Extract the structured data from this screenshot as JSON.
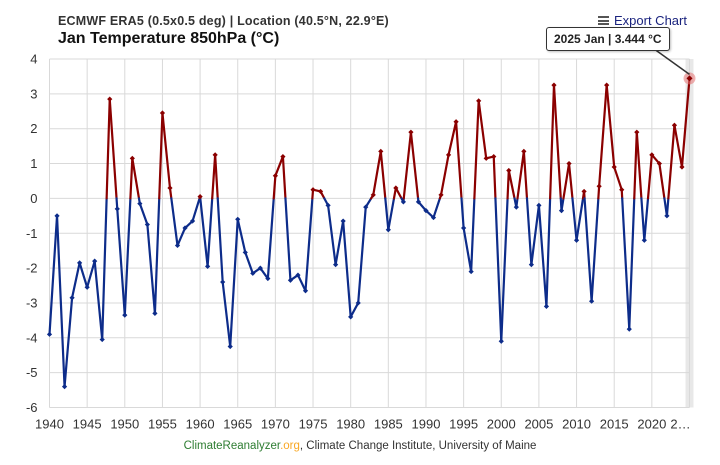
{
  "header": {
    "subtitle": "ECMWF ERA5 (0.5x0.5 deg) | Location (40.5°N, 22.9°E)",
    "export_label": "Export Chart",
    "menu_icon": "hamburger-menu-icon"
  },
  "footer": {
    "credit_site_a": "ClimateReanalyzer",
    "credit_site_b": ".org",
    "credit_rest": ", Climate Change Institute, University of Maine"
  },
  "tooltip": {
    "text": "2025 Jan | 3.444 °C"
  },
  "colors": {
    "below_zero": "#0d2c8a",
    "above_zero": "#8b0000",
    "grid": "#d9d9d9",
    "axis_text": "#333333",
    "highlight": "#e57373"
  },
  "chart_data": {
    "type": "line",
    "title": "Jan Temperature 850hPa (°C)",
    "xlabel": "",
    "ylabel": "",
    "xlim": [
      1940,
      2025
    ],
    "ylim": [
      -6,
      4
    ],
    "x_ticks": [
      1940,
      1945,
      1950,
      1955,
      1960,
      1965,
      1970,
      1975,
      1980,
      1985,
      1990,
      1995,
      2000,
      2005,
      2010,
      2015,
      2020
    ],
    "x_tick_labels": [
      "1940",
      "1945",
      "1950",
      "1955",
      "1960",
      "1965",
      "1970",
      "1975",
      "1980",
      "1985",
      "1990",
      "1995",
      "2000",
      "2005",
      "2010",
      "2015",
      "2020",
      "2…"
    ],
    "y_ticks": [
      -6,
      -5,
      -4,
      -3,
      -2,
      -1,
      0,
      1,
      2,
      3,
      4
    ],
    "grid": true,
    "threshold": 0,
    "highlighted_point": {
      "x": 2025,
      "y": 3.444
    },
    "x": [
      1940,
      1941,
      1942,
      1943,
      1944,
      1945,
      1946,
      1947,
      1948,
      1949,
      1950,
      1951,
      1952,
      1953,
      1954,
      1955,
      1956,
      1957,
      1958,
      1959,
      1960,
      1961,
      1962,
      1963,
      1964,
      1965,
      1966,
      1967,
      1968,
      1969,
      1970,
      1971,
      1972,
      1973,
      1974,
      1975,
      1976,
      1977,
      1978,
      1979,
      1980,
      1981,
      1982,
      1983,
      1984,
      1985,
      1986,
      1987,
      1988,
      1989,
      1990,
      1991,
      1992,
      1993,
      1994,
      1995,
      1996,
      1997,
      1998,
      1999,
      2000,
      2001,
      2002,
      2003,
      2004,
      2005,
      2006,
      2007,
      2008,
      2009,
      2010,
      2011,
      2012,
      2013,
      2014,
      2015,
      2016,
      2017,
      2018,
      2019,
      2020,
      2021,
      2022,
      2023,
      2024,
      2025
    ],
    "values": [
      -3.9,
      -0.5,
      -5.4,
      -2.85,
      -1.85,
      -2.55,
      -1.8,
      -4.05,
      2.85,
      -0.3,
      -3.35,
      1.15,
      -0.15,
      -0.75,
      -3.3,
      2.45,
      0.3,
      -1.35,
      -0.85,
      -0.65,
      0.05,
      -1.95,
      1.25,
      -2.4,
      -4.25,
      -0.6,
      -1.55,
      -2.15,
      -2.0,
      -2.3,
      0.65,
      1.2,
      -2.35,
      -2.2,
      -2.65,
      0.25,
      0.2,
      -0.2,
      -1.9,
      -0.65,
      -3.4,
      -3.0,
      -0.25,
      0.1,
      1.35,
      -0.9,
      0.3,
      -0.1,
      1.9,
      -0.1,
      -0.35,
      -0.55,
      0.1,
      1.25,
      2.2,
      -0.85,
      -2.1,
      2.8,
      1.15,
      1.2,
      -4.1,
      0.8,
      -0.25,
      1.35,
      -1.9,
      -0.2,
      -3.1,
      3.25,
      -0.35,
      1.0,
      -1.2,
      0.2,
      -2.95,
      0.35,
      3.25,
      0.9,
      0.25,
      -3.75,
      1.9,
      -1.2,
      1.25,
      1.0,
      -0.5,
      2.1,
      0.9,
      3.444
    ]
  }
}
